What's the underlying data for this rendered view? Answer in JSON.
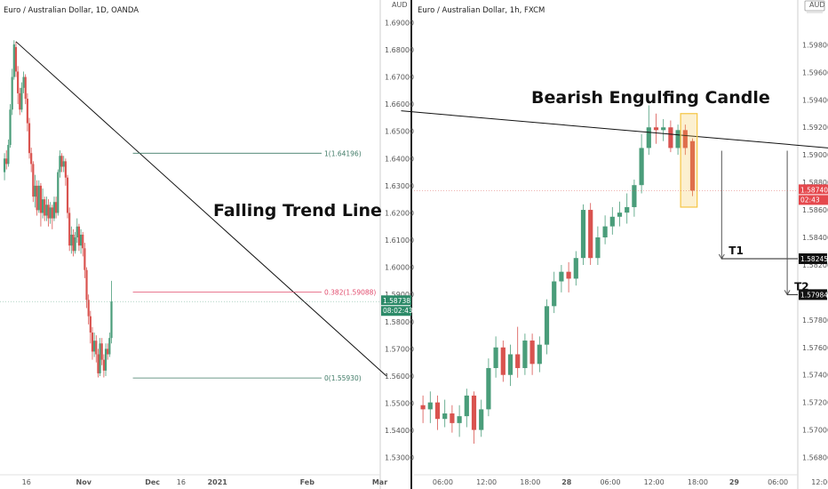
{
  "colors": {
    "up": "#4a9d7a",
    "down": "#d9534f",
    "fib_main": "#3f7a66",
    "fib_mid": "#e24b6d",
    "trend": "#111111",
    "hl": "#f5c542"
  },
  "chart_data": [
    {
      "type": "candlestick",
      "title": "Euro / Australian Dollar, 1D, OANDA",
      "currency": "AUD",
      "ylim": [
        1.525,
        1.697
      ],
      "y_ticks": [
        "1.69000",
        "1.68000",
        "1.67000",
        "1.66000",
        "1.65000",
        "1.64000",
        "1.63000",
        "1.62000",
        "1.61000",
        "1.60000",
        "1.59000",
        "1.58000",
        "1.57000",
        "1.56000",
        "1.55000",
        "1.54000",
        "1.53000"
      ],
      "x_ticks": [
        "16",
        "Nov",
        "Dec",
        "16",
        "2021",
        "Feb",
        "Mar"
      ],
      "x_tick_pos": [
        5,
        35,
        71,
        86,
        105,
        152,
        190
      ],
      "candles": [
        [
          1.635,
          1.64,
          1.632,
          1.642
        ],
        [
          1.64,
          1.638,
          1.636,
          1.643
        ],
        [
          1.638,
          1.645,
          1.637,
          1.647
        ],
        [
          1.645,
          1.658,
          1.644,
          1.66
        ],
        [
          1.658,
          1.67,
          1.656,
          1.673
        ],
        [
          1.67,
          1.682,
          1.669,
          1.6835
        ],
        [
          1.681,
          1.672,
          1.67,
          1.683
        ],
        [
          1.672,
          1.664,
          1.66,
          1.674
        ],
        [
          1.664,
          1.658,
          1.656,
          1.666
        ],
        [
          1.658,
          1.666,
          1.657,
          1.668
        ],
        [
          1.666,
          1.67,
          1.664,
          1.672
        ],
        [
          1.67,
          1.662,
          1.66,
          1.671
        ],
        [
          1.662,
          1.653,
          1.65,
          1.664
        ],
        [
          1.653,
          1.642,
          1.64,
          1.655
        ],
        [
          1.642,
          1.638,
          1.635,
          1.644
        ],
        [
          1.638,
          1.626,
          1.624,
          1.639
        ],
        [
          1.626,
          1.63,
          1.622,
          1.634
        ],
        [
          1.63,
          1.621,
          1.619,
          1.632
        ],
        [
          1.621,
          1.63,
          1.62,
          1.632
        ],
        [
          1.63,
          1.62,
          1.615,
          1.631
        ],
        [
          1.62,
          1.625,
          1.618,
          1.629
        ],
        [
          1.625,
          1.619,
          1.617,
          1.626
        ],
        [
          1.619,
          1.623,
          1.617,
          1.626
        ],
        [
          1.623,
          1.618,
          1.615,
          1.625
        ],
        [
          1.618,
          1.622,
          1.616,
          1.624
        ],
        [
          1.622,
          1.618,
          1.614,
          1.623
        ],
        [
          1.618,
          1.624,
          1.617,
          1.626
        ],
        [
          1.624,
          1.62,
          1.618,
          1.626
        ],
        [
          1.62,
          1.635,
          1.619,
          1.636
        ],
        [
          1.635,
          1.641,
          1.633,
          1.643
        ],
        [
          1.641,
          1.637,
          1.635,
          1.642
        ],
        [
          1.637,
          1.639,
          1.635,
          1.641
        ],
        [
          1.639,
          1.633,
          1.63,
          1.64
        ],
        [
          1.633,
          1.62,
          1.618,
          1.634
        ],
        [
          1.62,
          1.608,
          1.606,
          1.622
        ],
        [
          1.608,
          1.612,
          1.605,
          1.615
        ],
        [
          1.612,
          1.606,
          1.604,
          1.614
        ],
        [
          1.606,
          1.611,
          1.605,
          1.613
        ],
        [
          1.611,
          1.615,
          1.609,
          1.618
        ],
        [
          1.615,
          1.608,
          1.606,
          1.616
        ],
        [
          1.608,
          1.612,
          1.605,
          1.614
        ],
        [
          1.612,
          1.607,
          1.604,
          1.613
        ],
        [
          1.607,
          1.599,
          1.596,
          1.609
        ],
        [
          1.599,
          1.588,
          1.585,
          1.6
        ],
        [
          1.588,
          1.582,
          1.579,
          1.59
        ],
        [
          1.582,
          1.576,
          1.572,
          1.584
        ],
        [
          1.576,
          1.569,
          1.566,
          1.578
        ],
        [
          1.569,
          1.573,
          1.567,
          1.576
        ],
        [
          1.573,
          1.568,
          1.565,
          1.575
        ],
        [
          1.568,
          1.561,
          1.5595,
          1.57
        ],
        [
          1.561,
          1.572,
          1.56,
          1.574
        ],
        [
          1.572,
          1.566,
          1.564,
          1.574
        ],
        [
          1.566,
          1.562,
          1.5595,
          1.568
        ],
        [
          1.562,
          1.57,
          1.56,
          1.572
        ],
        [
          1.57,
          1.568,
          1.566,
          1.572
        ],
        [
          1.568,
          1.574,
          1.567,
          1.576
        ],
        [
          1.574,
          1.5874,
          1.572,
          1.595
        ]
      ],
      "fib_levels": [
        {
          "label": "1(1.64196)",
          "value": 1.64196,
          "start": 30
        },
        {
          "label": "0.382(1.59088)",
          "value": 1.59088,
          "start": 30
        },
        {
          "label": "0(1.55930)",
          "value": 1.5593,
          "start": 30
        }
      ],
      "trendline": {
        "from": [
          6,
          1.683
        ],
        "to": [
          200,
          1.56
        ]
      },
      "annotation": "Falling Trend Line",
      "price_tag": {
        "price": "1.58738",
        "timer": "08:02:43",
        "value": 1.58738
      }
    },
    {
      "type": "candlestick",
      "title": "Euro / Australian Dollar, 1h, FXCM",
      "currency": "AUD",
      "ylim": [
        1.567,
        1.601
      ],
      "y_ticks": [
        "1.59800",
        "1.59600",
        "1.59400",
        "1.59200",
        "1.59000",
        "1.58800",
        "1.58600",
        "1.58400",
        "1.58200",
        "1.58000",
        "1.57800",
        "1.57600",
        "1.57400",
        "1.57200",
        "1.57000",
        "1.56800"
      ],
      "x_ticks": [
        "06:00",
        "12:00",
        "18:00",
        "28",
        "06:00",
        "12:00",
        "18:00",
        "29",
        "06:00",
        "12:00"
      ],
      "x_tick_pos": [
        2,
        8,
        14,
        19,
        25,
        31,
        37,
        42,
        48,
        54
      ],
      "candles": [
        [
          1.5718,
          1.5715,
          1.5705,
          1.5725
        ],
        [
          1.5715,
          1.572,
          1.5705,
          1.5728
        ],
        [
          1.572,
          1.5708,
          1.57,
          1.5725
        ],
        [
          1.5708,
          1.5712,
          1.5702,
          1.5722
        ],
        [
          1.5712,
          1.5705,
          1.5698,
          1.5718
        ],
        [
          1.5705,
          1.571,
          1.5695,
          1.5718
        ],
        [
          1.571,
          1.5725,
          1.5702,
          1.573
        ],
        [
          1.5725,
          1.57,
          1.569,
          1.5728
        ],
        [
          1.57,
          1.5715,
          1.5695,
          1.5722
        ],
        [
          1.5715,
          1.5745,
          1.571,
          1.5752
        ],
        [
          1.5745,
          1.576,
          1.5738,
          1.5768
        ],
        [
          1.576,
          1.574,
          1.5735,
          1.5765
        ],
        [
          1.574,
          1.5755,
          1.5732,
          1.5762
        ],
        [
          1.5755,
          1.5745,
          1.5738,
          1.5775
        ],
        [
          1.5745,
          1.5765,
          1.574,
          1.577
        ],
        [
          1.5765,
          1.5748,
          1.574,
          1.577
        ],
        [
          1.5748,
          1.5762,
          1.5742,
          1.5768
        ],
        [
          1.5762,
          1.579,
          1.5755,
          1.5795
        ],
        [
          1.579,
          1.5808,
          1.5785,
          1.5815
        ],
        [
          1.5808,
          1.5815,
          1.58,
          1.582
        ],
        [
          1.5815,
          1.581,
          1.58,
          1.5822
        ],
        [
          1.581,
          1.5825,
          1.5805,
          1.583
        ],
        [
          1.5825,
          1.586,
          1.582,
          1.5864
        ],
        [
          1.586,
          1.5825,
          1.582,
          1.5865
        ],
        [
          1.5825,
          1.584,
          1.582,
          1.5848
        ],
        [
          1.584,
          1.5848,
          1.5835,
          1.5856
        ],
        [
          1.5848,
          1.5855,
          1.5842,
          1.5862
        ],
        [
          1.5855,
          1.5858,
          1.5848,
          1.5866
        ],
        [
          1.5858,
          1.5862,
          1.585,
          1.5872
        ],
        [
          1.5862,
          1.5878,
          1.5855,
          1.5882
        ],
        [
          1.5878,
          1.5905,
          1.5872,
          1.5915
        ],
        [
          1.5905,
          1.592,
          1.59,
          1.5936
        ],
        [
          1.592,
          1.5918,
          1.5908,
          1.593
        ],
        [
          1.5918,
          1.592,
          1.591,
          1.5926
        ],
        [
          1.592,
          1.5905,
          1.5902,
          1.5925
        ],
        [
          1.5905,
          1.5918,
          1.59,
          1.5922
        ],
        [
          1.5918,
          1.5905,
          1.59,
          1.5922
        ],
        [
          1.591,
          1.5874,
          1.587,
          1.5912
        ]
      ],
      "trendline": {
        "from": [
          -3,
          1.5932
        ],
        "to": [
          71,
          1.5898
        ]
      },
      "highlight": {
        "from": 36,
        "to": 37,
        "low": 1.5862,
        "high": 1.593
      },
      "targets": [
        {
          "label": "T1",
          "value": 1.58245,
          "x": 41,
          "top": 1.5903
        },
        {
          "label": "T2",
          "value": 1.57984,
          "x": 50,
          "top": 1.5903
        }
      ],
      "annotation": "Bearish Engulfing Candle",
      "price_tag": {
        "price": "1.58740",
        "timer": "02:43",
        "value": 1.5874
      },
      "target_tags": [
        "1.58245",
        "1.57984"
      ],
      "scale_label": "AUD"
    }
  ]
}
